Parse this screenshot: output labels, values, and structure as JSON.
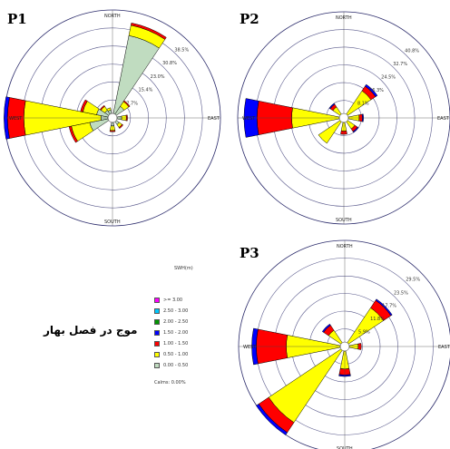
{
  "panel_labels": [
    "P1",
    "P2",
    "P3"
  ],
  "side_caption": "موج در فصل بهار",
  "legend": {
    "title": "SWH(m)",
    "items": [
      {
        "label": ">= 3.00",
        "color": "#ff00ff"
      },
      {
        "label": "2.50 - 3.00",
        "color": "#00c8ff"
      },
      {
        "label": "2.00 - 2.50",
        "color": "#009600"
      },
      {
        "label": "1.50 - 2.00",
        "color": "#0000ff"
      },
      {
        "label": "1.00 - 1.50",
        "color": "#ff0000"
      },
      {
        "label": "0.50 - 1.00",
        "color": "#ffff00"
      },
      {
        "label": "0.00 - 0.50",
        "color": "#c0dcc0"
      }
    ],
    "calms": "Calms: 0.00%"
  },
  "chart_data": [
    {
      "type": "wind-rose",
      "panel": "P1",
      "directions": [
        "NORTH",
        "EAST",
        "SOUTH",
        "WEST"
      ],
      "ring_labels": [
        "7.7%",
        "15.4%",
        "23.0%",
        "30.8%",
        "38.5%"
      ],
      "ring_values": [
        7.7,
        15.4,
        23.0,
        30.8,
        38.5
      ],
      "rmax": 46.2,
      "sectors": [
        {
          "angle": 22.5,
          "bands": [
            34,
            4.5,
            1
          ]
        },
        {
          "angle": 45,
          "bands": [
            4,
            2.5,
            0.5
          ]
        },
        {
          "angle": 90,
          "bands": [
            2,
            2,
            0.5
          ]
        },
        {
          "angle": 135,
          "bands": [
            1.5,
            1.5,
            0.5
          ]
        },
        {
          "angle": 180,
          "bands": [
            1.5,
            2,
            0.5
          ]
        },
        {
          "angle": 247.5,
          "bands": [
            8,
            8,
            1
          ]
        },
        {
          "angle": 270,
          "bands": [
            3,
            33,
            7,
            1.5
          ]
        },
        {
          "angle": 292.5,
          "bands": [
            5,
            6,
            1
          ]
        },
        {
          "angle": 315,
          "bands": [
            2,
            2,
            0.5
          ]
        },
        {
          "angle": 337.5,
          "bands": [
            1.5,
            1,
            0
          ]
        }
      ]
    },
    {
      "type": "wind-rose",
      "panel": "P2",
      "directions": [
        "NORTH",
        "EAST",
        "SOUTH",
        "WEST"
      ],
      "ring_labels": [
        "8.1%",
        "16.3%",
        "24.5%",
        "32.7%",
        "40.8%"
      ],
      "ring_values": [
        8.1,
        16.3,
        24.5,
        32.7,
        40.8
      ],
      "rmax": 49,
      "sectors": [
        {
          "angle": 45,
          "bands": [
            0,
            13,
            2.5,
            1
          ]
        },
        {
          "angle": 90,
          "bands": [
            0,
            5,
            1.5,
            0.5
          ]
        },
        {
          "angle": 135,
          "bands": [
            0,
            4,
            1.5,
            0.5
          ]
        },
        {
          "angle": 180,
          "bands": [
            0,
            4,
            1.5,
            0
          ]
        },
        {
          "angle": 225,
          "bands": [
            0,
            12,
            0,
            0
          ]
        },
        {
          "angle": 270,
          "bands": [
            0,
            22,
            16,
            6
          ]
        },
        {
          "angle": 315,
          "bands": [
            0,
            4,
            1.5,
            0.5
          ]
        }
      ]
    },
    {
      "type": "wind-rose",
      "panel": "P3",
      "directions": [
        "NORTH",
        "EAST",
        "SOUTH",
        "WEST"
      ],
      "ring_labels": [
        "5.9%",
        "11.8%",
        "17.7%",
        "23.5%",
        "29.5%"
      ],
      "ring_values": [
        5.9,
        11.8,
        17.7,
        23.5,
        29.5
      ],
      "rmax": 35.4,
      "sectors": [
        {
          "angle": 45,
          "bands": [
            0,
            14,
            3,
            0.5
          ]
        },
        {
          "angle": 90,
          "bands": [
            0,
            3,
            1,
            0
          ]
        },
        {
          "angle": 180,
          "bands": [
            0,
            6,
            2,
            0.5
          ]
        },
        {
          "angle": 225,
          "bands": [
            0,
            29,
            4,
            1
          ]
        },
        {
          "angle": 270,
          "bands": [
            0,
            18,
            10,
            1.5
          ]
        },
        {
          "angle": 315,
          "bands": [
            0,
            5,
            2,
            0.5
          ]
        }
      ]
    }
  ]
}
